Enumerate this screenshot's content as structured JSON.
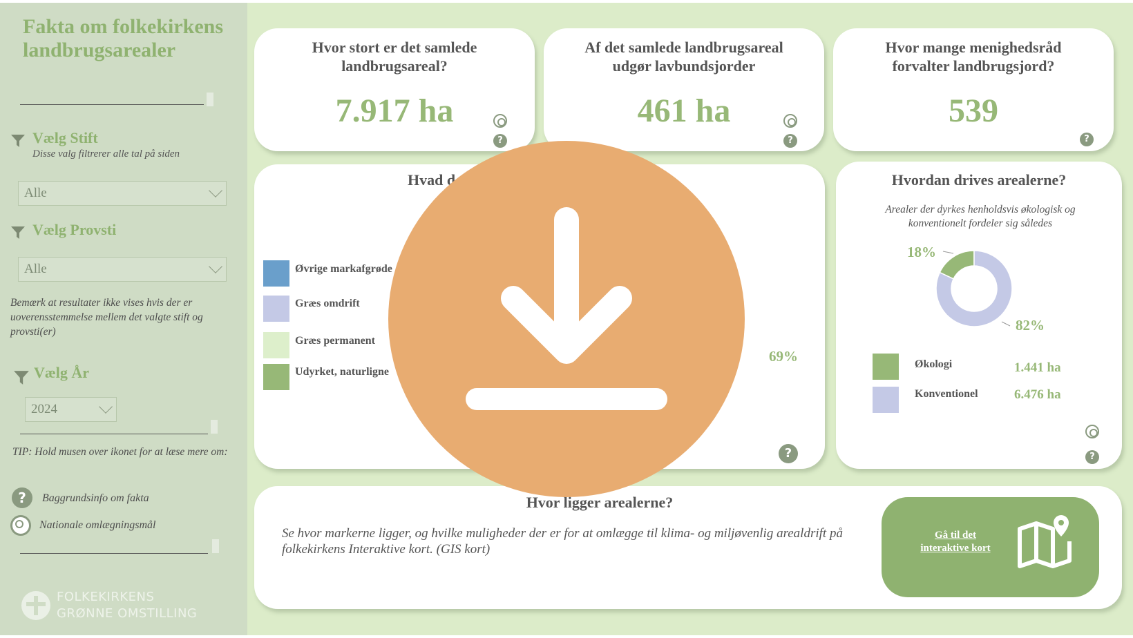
{
  "sidebar": {
    "title": "Fakta om folkekirkens landbrugsarealer",
    "filters": {
      "stift": {
        "label": "Vælg Stift",
        "sublabel": "Disse valg filtrerer alle tal på siden",
        "value": "Alle"
      },
      "provsti": {
        "label": "Vælg Provsti",
        "value": "Alle"
      },
      "year": {
        "label": "Vælg År",
        "value": "2024"
      }
    },
    "note": "Bemærk at resultater ikke vises hvis der er uoverensstemmelse mellem det valgte stift og provsti(er)",
    "tip": "TIP: Hold musen over ikonet for at læse mere om:",
    "legend": {
      "help": "Baggrundsinfo om fakta",
      "target": "Nationale omlægningsmål"
    },
    "brand": {
      "line1": "FOLKEKIRKENS",
      "line2": "GRØNNE OMSTILLING"
    }
  },
  "kpis": [
    {
      "question": "Hvor stort er det samlede landbrugsareal?",
      "value": "7.917 ha"
    },
    {
      "question": "Af det samlede landbrugsareal udgør lavbundsjorder",
      "value": "461 ha"
    },
    {
      "question": "Hvor mange menighedsråd forvalter landbrugsjord?",
      "value": "539"
    }
  ],
  "usage": {
    "title_visible": "Hvad d",
    "legend": [
      "Øvrige markafgrøde",
      "Græs omdrift",
      "Græs permanent",
      "Udyrket, naturligne"
    ],
    "pct_label": "69%"
  },
  "farming": {
    "title": "Hvordan drives arealerne?",
    "subtitle": "Arealer der dyrkes henholdsvis økologisk og konventionelt fordeler sig således",
    "pct_organic": "18%",
    "pct_conventional": "82%",
    "rows": [
      {
        "label": "Økologi",
        "value": "1.441 ha"
      },
      {
        "label": "Konventionel",
        "value": "6.476 ha"
      }
    ]
  },
  "location": {
    "title": "Hvor ligger arealerne?",
    "text": "Se hvor markerne ligger, og hvilke muligheder der er for at omlægge til klima- og miljøvenlig arealdrift på folkekirkens Interaktive kort. (GIS kort)",
    "button": "Gå til det interaktive kort"
  },
  "chart_data": {
    "type": "pie",
    "categories": [
      "Økologi",
      "Konventionel"
    ],
    "values": [
      18,
      82
    ],
    "colors": [
      "#97b877",
      "#c4c9e6"
    ]
  }
}
